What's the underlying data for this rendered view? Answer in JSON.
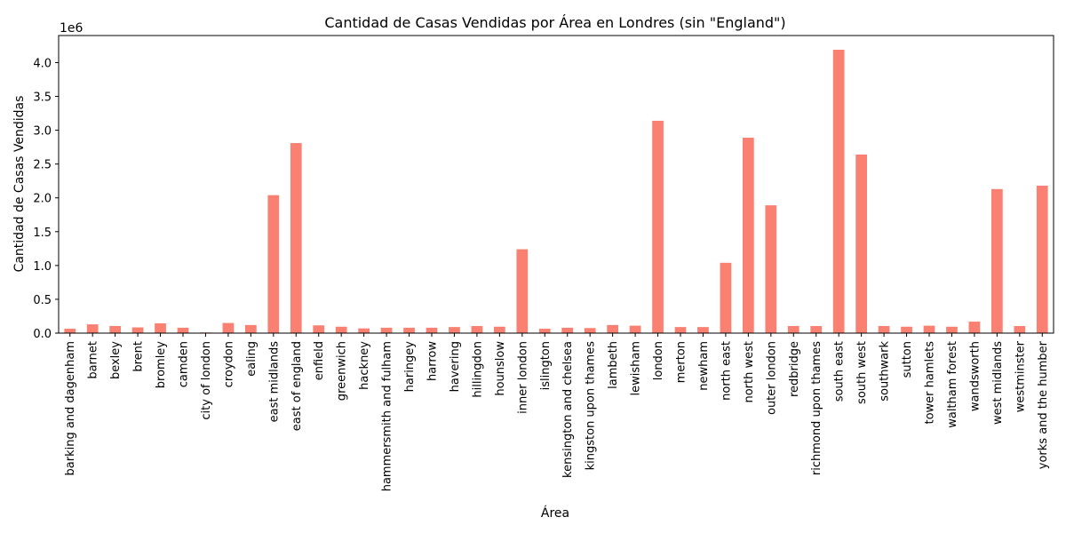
{
  "chart_data": {
    "type": "bar",
    "title": "Cantidad de Casas Vendidas por Área en Londres (sin \"England\")",
    "xlabel": "Área",
    "ylabel": "Cantidad de Casas Vendidas",
    "y_offset_label": "1e6",
    "ylim": [
      0,
      4400000
    ],
    "yticks": [
      0,
      500000,
      1000000,
      1500000,
      2000000,
      2500000,
      3000000,
      3500000,
      4000000
    ],
    "ytick_labels": [
      "0.0",
      "0.5",
      "1.0",
      "1.5",
      "2.0",
      "2.5",
      "3.0",
      "3.5",
      "4.0"
    ],
    "bar_color": "#fa8072",
    "grid": false,
    "legend": "none",
    "categories": [
      "barking and dagenham",
      "barnet",
      "bexley",
      "brent",
      "bromley",
      "camden",
      "city of london",
      "croydon",
      "ealing",
      "east midlands",
      "east of england",
      "enfield",
      "greenwich",
      "hackney",
      "hammersmith and fulham",
      "haringey",
      "harrow",
      "havering",
      "hillingdon",
      "hounslow",
      "inner london",
      "islington",
      "kensington and chelsea",
      "kingston upon thames",
      "lambeth",
      "lewisham",
      "london",
      "merton",
      "newham",
      "north east",
      "north west",
      "outer london",
      "redbridge",
      "richmond upon thames",
      "south east",
      "south west",
      "southwark",
      "sutton",
      "tower hamlets",
      "waltham forest",
      "wandsworth",
      "west midlands",
      "westminster",
      "yorks and the humber"
    ],
    "values": [
      65000,
      130000,
      105000,
      85000,
      145000,
      80000,
      10000,
      150000,
      120000,
      2040000,
      2810000,
      115000,
      95000,
      70000,
      80000,
      80000,
      80000,
      90000,
      105000,
      95000,
      1240000,
      65000,
      80000,
      75000,
      120000,
      110000,
      3140000,
      90000,
      90000,
      1040000,
      2890000,
      1890000,
      105000,
      105000,
      4190000,
      2640000,
      105000,
      95000,
      110000,
      95000,
      170000,
      2130000,
      105000,
      2180000
    ]
  }
}
